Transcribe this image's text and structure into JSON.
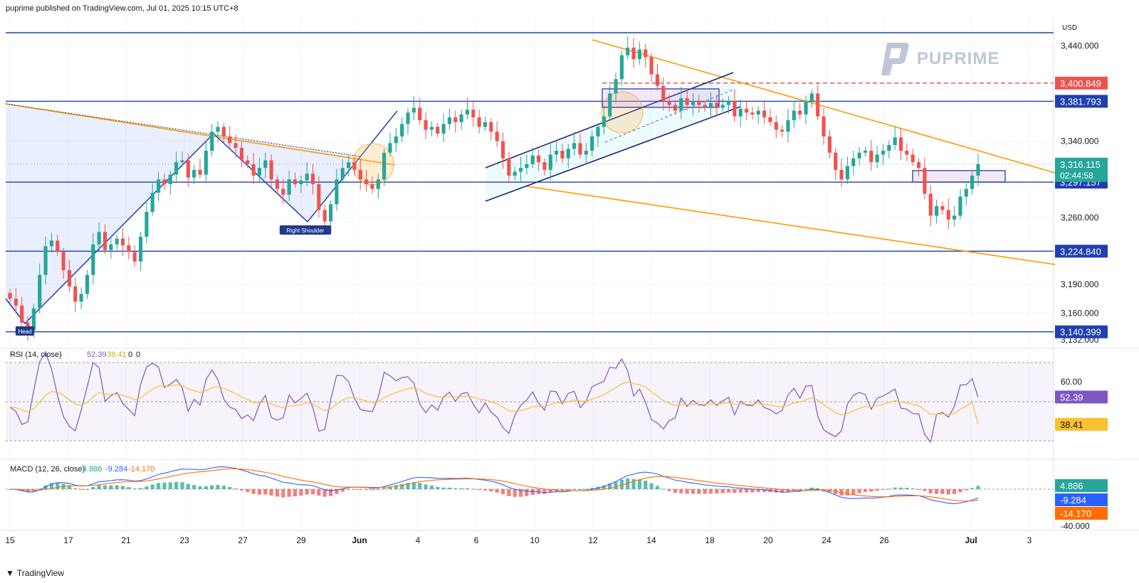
{
  "header": {
    "published": "puprime published on TradingView.com, Jul 01, 2025 10:15 UTC+8"
  },
  "watermark": {
    "brand": "PUPRIME"
  },
  "footer": {
    "brand": "TradingView"
  },
  "colors": {
    "up": "#26a69a",
    "down": "#ef5350",
    "level": "#1e40af",
    "trend": "#ff9800",
    "rsi": "#7e57c2",
    "rsi_ma": "#fbc02d",
    "macd": "#2962ff",
    "signal": "#ff6d00"
  },
  "chart_data": [
    {
      "type": "candlestick",
      "currency": "USD",
      "x_ticks": [
        "15",
        "17",
        "21",
        "23",
        "27",
        "29",
        "Jun",
        "4",
        "6",
        "10",
        "12",
        "14",
        "18",
        "20",
        "24",
        "26",
        "Jul",
        "3"
      ],
      "y_ticks": [
        "3,440.000",
        "3,340.000",
        "3,260.000",
        "3,190.000",
        "3,160.000",
        "3,132.000"
      ],
      "ylim": [
        3132,
        3470
      ],
      "levels": [
        {
          "label": "3,381.793",
          "value": 3381.793
        },
        {
          "label": "3,297.157",
          "value": 3297.157
        },
        {
          "label": "3,224.840",
          "value": 3224.84
        },
        {
          "label": "3,140.399",
          "value": 3140.399
        }
      ],
      "resistance_line_value": 3400.849,
      "resistance_label": "3,400.849",
      "last_price": {
        "label": "3,316.115",
        "countdown": "02:44:58"
      },
      "pattern_labels": [
        "Head",
        "Right Shoulder"
      ],
      "closes": [
        3175,
        3168,
        3150,
        3142,
        3165,
        3200,
        3230,
        3236,
        3224,
        3205,
        3188,
        3172,
        3180,
        3200,
        3232,
        3245,
        3226,
        3232,
        3238,
        3231,
        3224,
        3214,
        3240,
        3266,
        3286,
        3300,
        3295,
        3305,
        3318,
        3320,
        3302,
        3310,
        3305,
        3330,
        3350,
        3355,
        3345,
        3338,
        3333,
        3320,
        3316,
        3304,
        3312,
        3320,
        3300,
        3290,
        3284,
        3300,
        3295,
        3299,
        3306,
        3295,
        3268,
        3256,
        3274,
        3300,
        3312,
        3318,
        3310,
        3300,
        3295,
        3290,
        3300,
        3328,
        3338,
        3345,
        3358,
        3370,
        3375,
        3362,
        3352,
        3355,
        3348,
        3358,
        3365,
        3360,
        3368,
        3373,
        3365,
        3355,
        3360,
        3350,
        3340,
        3322,
        3304,
        3308,
        3312,
        3316,
        3325,
        3318,
        3310,
        3326,
        3330,
        3322,
        3332,
        3338,
        3326,
        3330,
        3345,
        3355,
        3366,
        3390,
        3405,
        3430,
        3438,
        3426,
        3436,
        3428,
        3410,
        3398,
        3382,
        3378,
        3372,
        3385,
        3378,
        3382,
        3378,
        3376,
        3380,
        3375,
        3378,
        3382,
        3366,
        3374,
        3370,
        3368,
        3372,
        3365,
        3360,
        3352,
        3350,
        3362,
        3372,
        3368,
        3382,
        3390,
        3366,
        3345,
        3328,
        3310,
        3300,
        3314,
        3322,
        3328,
        3330,
        3318,
        3326,
        3330,
        3336,
        3344,
        3330,
        3326,
        3318,
        3312,
        3285,
        3262,
        3272,
        3268,
        3258,
        3262,
        3282,
        3290,
        3304,
        3316
      ],
      "rsi": {
        "label": "RSI (14, close)",
        "value": "52.39",
        "ma": "38.41",
        "extra": [
          "0",
          "0"
        ],
        "ticks": [
          "60.00"
        ]
      },
      "macd": {
        "label": "MACD (12, 26, close)",
        "hist": "4.886",
        "macd": "-9.284",
        "signal": "-14.170",
        "ticks": [
          "-40.000"
        ]
      }
    }
  ]
}
